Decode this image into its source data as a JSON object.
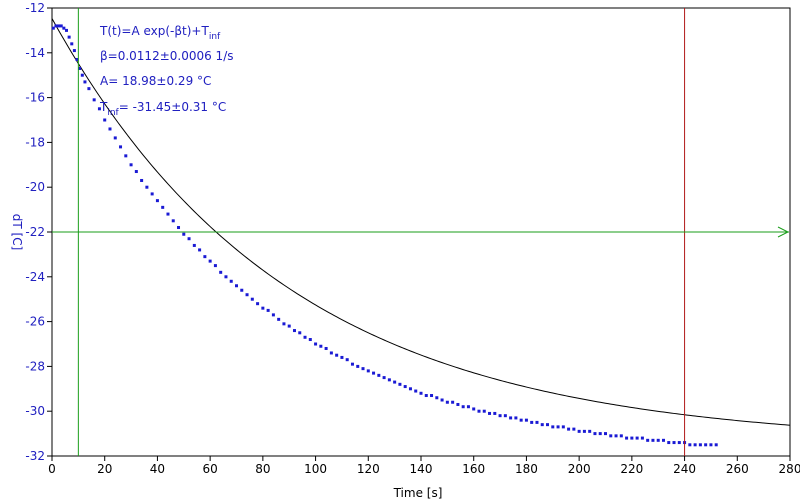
{
  "chart_data": {
    "type": "scatter",
    "xlabel": "Time [s]",
    "ylabel": "dT [C]",
    "xlim": [
      0,
      280
    ],
    "ylim": [
      -32,
      -12
    ],
    "x_ticks": [
      "0",
      "20",
      "40",
      "60",
      "80",
      "100",
      "120",
      "140",
      "160",
      "180",
      "200",
      "220",
      "240",
      "260",
      "280"
    ],
    "y_ticks": [
      "-12",
      "-14",
      "-16",
      "-18",
      "-20",
      "-22",
      "-24",
      "-26",
      "-28",
      "-30",
      "-32"
    ],
    "grid": false,
    "annotations": {
      "formula_main": "T(t)=A exp(-βt)+T",
      "formula_sub": "inf",
      "beta": "β=0.0112±0.0006 1/s",
      "amplitude": "A= 18.98±0.29 °C",
      "tinf_main": "T",
      "tinf_sub": "inf",
      "tinf_rest": "= -31.45±0.31 °C"
    },
    "fit": {
      "A": 18.98,
      "beta": 0.0112,
      "T_inf": -31.45,
      "x_range": [
        0,
        280
      ]
    },
    "series": [
      {
        "x": [
          0.5,
          1.5,
          2.5,
          3.5,
          4.5,
          5.5,
          6.5,
          7.5,
          8.5,
          9.5,
          10.5,
          11.5,
          12.5,
          14,
          16,
          18,
          20,
          22,
          24,
          26,
          28,
          30,
          32,
          34,
          36,
          38,
          40,
          42,
          44,
          46,
          48,
          50,
          52,
          54,
          56,
          58,
          60,
          62,
          64,
          66,
          68,
          70,
          72,
          74,
          76,
          78,
          80,
          82,
          84,
          86,
          88,
          90,
          92,
          94,
          96,
          98,
          100,
          102,
          104,
          106,
          108,
          110,
          112,
          114,
          116,
          118,
          120,
          122,
          124,
          126,
          128,
          130,
          132,
          134,
          136,
          138,
          140,
          142,
          144,
          146,
          148,
          150,
          152,
          154,
          156,
          158,
          160,
          162,
          164,
          166,
          168,
          170,
          172,
          174,
          176,
          178,
          180,
          182,
          184,
          186,
          188,
          190,
          192,
          194,
          196,
          198,
          200,
          202,
          204,
          206,
          208,
          210,
          212,
          214,
          216,
          218,
          220,
          222,
          224,
          226,
          228,
          230,
          232,
          234,
          236,
          238,
          240,
          242,
          244,
          246,
          248,
          250,
          252
        ],
        "y": [
          -12.9,
          -12.8,
          -12.8,
          -12.8,
          -12.9,
          -13.0,
          -13.3,
          -13.6,
          -13.9,
          -14.3,
          -14.7,
          -15.0,
          -15.3,
          -15.6,
          -16.1,
          -16.5,
          -17.0,
          -17.4,
          -17.8,
          -18.2,
          -18.6,
          -19.0,
          -19.3,
          -19.7,
          -20.0,
          -20.3,
          -20.6,
          -20.9,
          -21.2,
          -21.5,
          -21.8,
          -22.1,
          -22.3,
          -22.6,
          -22.8,
          -23.1,
          -23.3,
          -23.5,
          -23.8,
          -24.0,
          -24.2,
          -24.4,
          -24.6,
          -24.8,
          -25.0,
          -25.2,
          -25.4,
          -25.5,
          -25.7,
          -25.9,
          -26.1,
          -26.2,
          -26.4,
          -26.5,
          -26.7,
          -26.8,
          -27.0,
          -27.1,
          -27.2,
          -27.4,
          -27.5,
          -27.6,
          -27.7,
          -27.9,
          -28.0,
          -28.1,
          -28.2,
          -28.3,
          -28.4,
          -28.5,
          -28.6,
          -28.7,
          -28.8,
          -28.9,
          -29.0,
          -29.1,
          -29.2,
          -29.3,
          -29.3,
          -29.4,
          -29.5,
          -29.6,
          -29.6,
          -29.7,
          -29.8,
          -29.8,
          -29.9,
          -30.0,
          -30.0,
          -30.1,
          -30.1,
          -30.2,
          -30.2,
          -30.3,
          -30.3,
          -30.4,
          -30.4,
          -30.5,
          -30.5,
          -30.6,
          -30.6,
          -30.7,
          -30.7,
          -30.7,
          -30.8,
          -30.8,
          -30.9,
          -30.9,
          -30.9,
          -31.0,
          -31.0,
          -31.0,
          -31.1,
          -31.1,
          -31.1,
          -31.2,
          -31.2,
          -31.2,
          -31.2,
          -31.3,
          -31.3,
          -31.3,
          -31.3,
          -31.4,
          -31.4,
          -31.4,
          -31.4,
          -31.5,
          -31.5,
          -31.5,
          -31.5,
          -31.5,
          -31.5
        ]
      }
    ],
    "markers": {
      "vertical_green_x": 10,
      "vertical_red_x": 240,
      "horizontal_green_y": -22
    },
    "colors": {
      "data": "#1a1ad4",
      "fit": "#000000",
      "green_marker": "#1a9e1a",
      "red_marker": "#b01a1a",
      "axis_text_y": "#2020c0"
    }
  }
}
